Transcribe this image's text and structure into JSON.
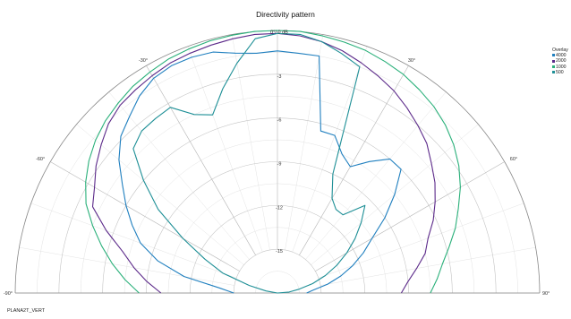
{
  "chart_data": {
    "type": "polar-line",
    "title": "Directivity pattern",
    "center_label": "0°/ 0 dB",
    "angle_range": [
      -90,
      90
    ],
    "angle_labels": [
      {
        "deg": -90,
        "text": "-90°"
      },
      {
        "deg": -60,
        "text": "-60°"
      },
      {
        "deg": -30,
        "text": "-30°"
      },
      {
        "deg": 30,
        "text": "30°"
      },
      {
        "deg": 60,
        "text": "60°"
      },
      {
        "deg": 90,
        "text": "90°"
      }
    ],
    "radial_range_db": [
      -18,
      0
    ],
    "radial_ticks": [
      {
        "db": -3,
        "text": "-3"
      },
      {
        "db": -6,
        "text": "-6"
      },
      {
        "db": -9,
        "text": "-9"
      },
      {
        "db": -12,
        "text": "-12"
      },
      {
        "db": -15,
        "text": "-15"
      }
    ],
    "grid": true,
    "legend_title": "Overlay",
    "legend_position": "top-right",
    "series": [
      {
        "name": "4000",
        "color": "#1f7fbf",
        "points": [
          [
            -90,
            -15
          ],
          [
            -85,
            -14
          ],
          [
            -80,
            -11.5
          ],
          [
            -75,
            -9.5
          ],
          [
            -70,
            -8
          ],
          [
            -65,
            -7
          ],
          [
            -60,
            -6
          ],
          [
            -55,
            -5
          ],
          [
            -50,
            -3.8
          ],
          [
            -45,
            -2.8
          ],
          [
            -40,
            -2.2
          ],
          [
            -35,
            -1.5
          ],
          [
            -30,
            -1
          ],
          [
            -25,
            -0.8
          ],
          [
            -20,
            -0.8
          ],
          [
            -15,
            -0.9
          ],
          [
            -10,
            -1.3
          ],
          [
            -5,
            -1.5
          ],
          [
            0,
            -1.4
          ],
          [
            5,
            -1.5
          ],
          [
            10,
            -1.5
          ],
          [
            15,
            -6.5
          ],
          [
            20,
            -6.5
          ],
          [
            25,
            -7.5
          ],
          [
            30,
            -8
          ],
          [
            35,
            -7
          ],
          [
            40,
            -6
          ],
          [
            45,
            -6
          ],
          [
            50,
            -7.5
          ],
          [
            55,
            -9
          ],
          [
            60,
            -10.5
          ],
          [
            65,
            -11.5
          ],
          [
            70,
            -12.5
          ],
          [
            75,
            -13.5
          ],
          [
            80,
            -14.5
          ],
          [
            85,
            -15.5
          ],
          [
            90,
            -16
          ]
        ]
      },
      {
        "name": "2000",
        "color": "#5c2a8a",
        "points": [
          [
            -90,
            -10
          ],
          [
            -85,
            -9
          ],
          [
            -80,
            -8
          ],
          [
            -75,
            -7
          ],
          [
            -70,
            -5.5
          ],
          [
            -65,
            -4
          ],
          [
            -60,
            -3.5
          ],
          [
            -55,
            -2.8
          ],
          [
            -50,
            -2.2
          ],
          [
            -45,
            -1.6
          ],
          [
            -40,
            -1.2
          ],
          [
            -35,
            -1
          ],
          [
            -30,
            -0.8
          ],
          [
            -25,
            -0.6
          ],
          [
            -20,
            -0.5
          ],
          [
            -15,
            -0.4
          ],
          [
            -10,
            -0.3
          ],
          [
            -5,
            -0.2
          ],
          [
            0,
            -0.2
          ],
          [
            5,
            -0.3
          ],
          [
            10,
            -0.5
          ],
          [
            15,
            -0.8
          ],
          [
            20,
            -1.2
          ],
          [
            25,
            -1.6
          ],
          [
            30,
            -2
          ],
          [
            35,
            -2.5
          ],
          [
            40,
            -3
          ],
          [
            45,
            -3.5
          ],
          [
            50,
            -4.2
          ],
          [
            55,
            -4.8
          ],
          [
            60,
            -5.5
          ],
          [
            65,
            -6.2
          ],
          [
            70,
            -7
          ],
          [
            75,
            -7.5
          ],
          [
            80,
            -8.3
          ],
          [
            85,
            -9
          ],
          [
            90,
            -9.5
          ]
        ]
      },
      {
        "name": "1000",
        "color": "#2ab07a",
        "points": [
          [
            -90,
            -8.5
          ],
          [
            -85,
            -7.5
          ],
          [
            -80,
            -6.5
          ],
          [
            -75,
            -5.5
          ],
          [
            -70,
            -4.5
          ],
          [
            -65,
            -3.5
          ],
          [
            -60,
            -2.8
          ],
          [
            -55,
            -2.2
          ],
          [
            -50,
            -1.7
          ],
          [
            -45,
            -1.3
          ],
          [
            -40,
            -1
          ],
          [
            -35,
            -0.7
          ],
          [
            -30,
            -0.5
          ],
          [
            -25,
            -0.3
          ],
          [
            -20,
            -0.2
          ],
          [
            -15,
            -0.1
          ],
          [
            -10,
            -0.05
          ],
          [
            -5,
            0
          ],
          [
            0,
            0
          ],
          [
            5,
            0
          ],
          [
            10,
            -0.1
          ],
          [
            15,
            -0.2
          ],
          [
            20,
            -0.3
          ],
          [
            25,
            -0.5
          ],
          [
            30,
            -0.7
          ],
          [
            35,
            -1
          ],
          [
            40,
            -1.3
          ],
          [
            45,
            -1.7
          ],
          [
            50,
            -2.2
          ],
          [
            55,
            -2.8
          ],
          [
            60,
            -3.5
          ],
          [
            65,
            -4.3
          ],
          [
            70,
            -5
          ],
          [
            75,
            -5.8
          ],
          [
            80,
            -6.5
          ],
          [
            85,
            -7
          ],
          [
            90,
            -7.5
          ]
        ]
      },
      {
        "name": "500",
        "color": "#1e8f96",
        "points": [
          [
            -90,
            -18
          ],
          [
            -85,
            -18
          ],
          [
            -80,
            -17.2
          ],
          [
            -75,
            -16
          ],
          [
            -70,
            -14
          ],
          [
            -65,
            -12.5
          ],
          [
            -60,
            -10.5
          ],
          [
            -55,
            -8
          ],
          [
            -50,
            -6
          ],
          [
            -45,
            -4
          ],
          [
            -40,
            -3.5
          ],
          [
            -35,
            -3.4
          ],
          [
            -30,
            -3.3
          ],
          [
            -25,
            -4.5
          ],
          [
            -20,
            -5
          ],
          [
            -15,
            -3.5
          ],
          [
            -10,
            -2
          ],
          [
            -5,
            -0.5
          ],
          [
            0,
            -0.2
          ],
          [
            5,
            -0.2
          ],
          [
            10,
            -0.5
          ],
          [
            15,
            -1
          ],
          [
            20,
            -1.5
          ],
          [
            25,
            -9
          ],
          [
            30,
            -10.5
          ],
          [
            35,
            -11
          ],
          [
            40,
            -11
          ],
          [
            45,
            -9.5
          ],
          [
            50,
            -10.5
          ],
          [
            55,
            -11.5
          ],
          [
            60,
            -12.5
          ],
          [
            65,
            -13.5
          ],
          [
            70,
            -14.5
          ],
          [
            75,
            -15.5
          ],
          [
            80,
            -16.5
          ],
          [
            85,
            -17.2
          ],
          [
            90,
            -18
          ]
        ]
      }
    ]
  },
  "footer": {
    "file_label": "PLANA2T_VERT"
  }
}
